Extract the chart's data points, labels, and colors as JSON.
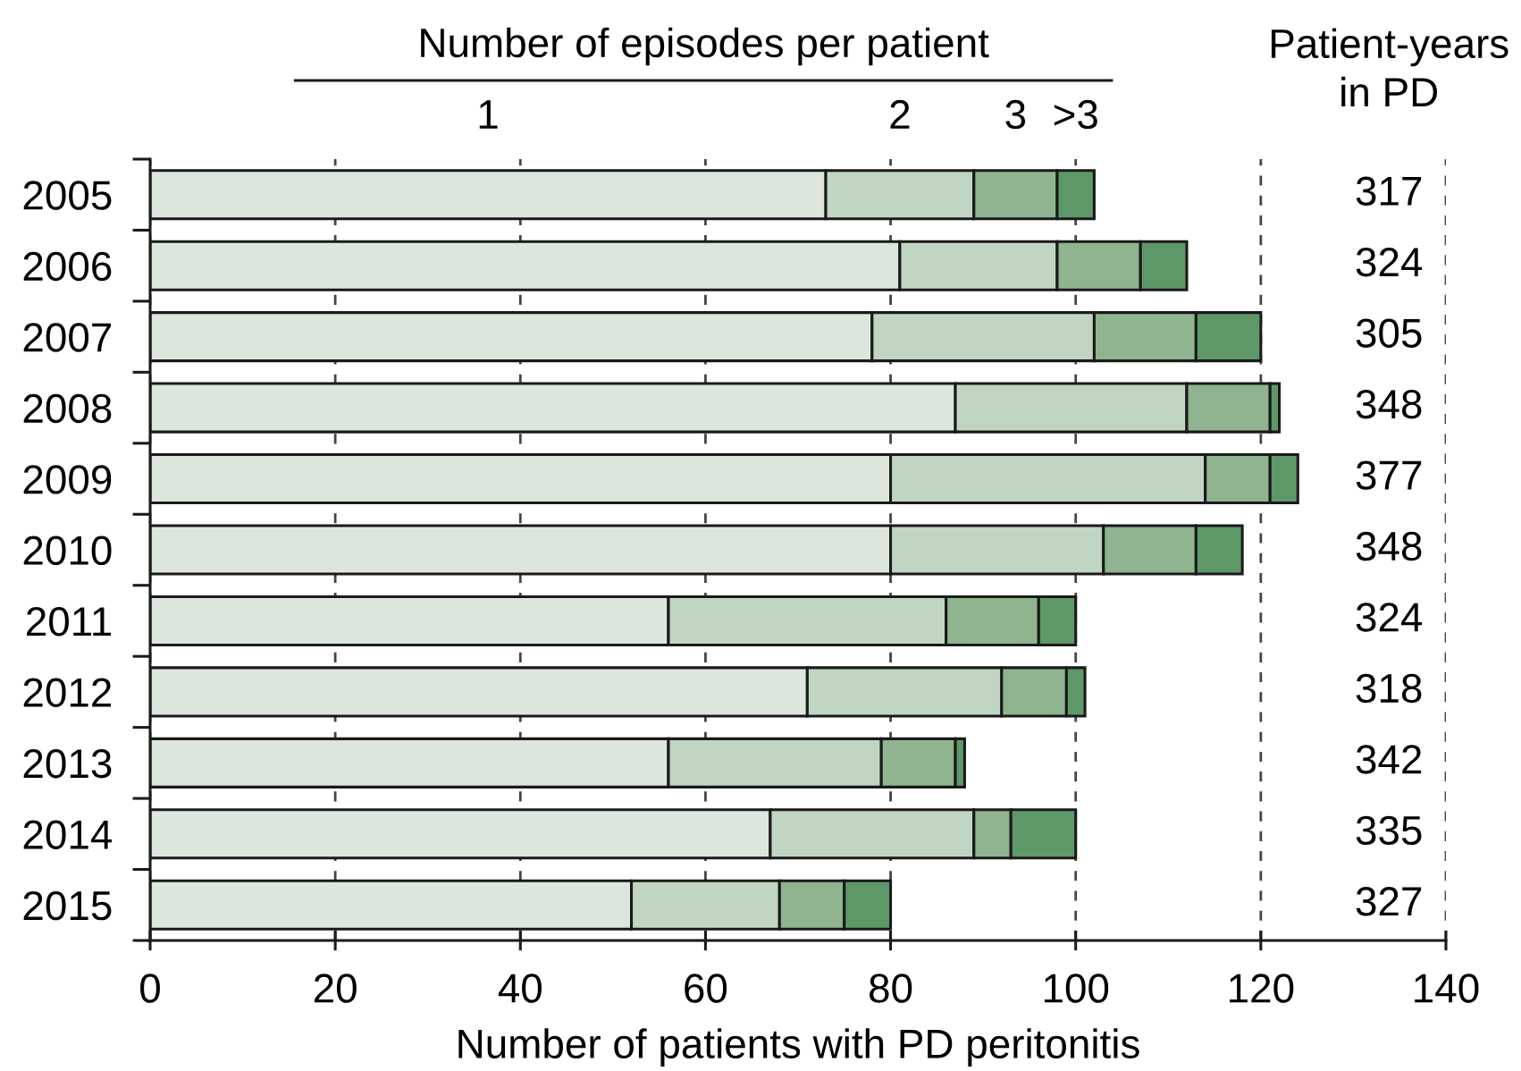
{
  "chart_data": {
    "type": "bar",
    "orientation": "horizontal",
    "stacked": true,
    "legend_title": "Number of episodes per patient",
    "xlabel": "Number of patients with PD peritonitis",
    "categories": [
      "2005",
      "2006",
      "2007",
      "2008",
      "2009",
      "2010",
      "2011",
      "2012",
      "2013",
      "2014",
      "2015"
    ],
    "series": [
      {
        "name": "1",
        "color": "#dde6dd",
        "values": [
          73,
          81,
          78,
          87,
          80,
          80,
          56,
          71,
          56,
          67,
          52
        ]
      },
      {
        "name": "2",
        "color": "#c1d6c2",
        "values": [
          16,
          17,
          24,
          25,
          34,
          23,
          30,
          21,
          23,
          22,
          16
        ]
      },
      {
        "name": "3",
        "color": "#8fb48f",
        "values": [
          9,
          9,
          11,
          9,
          7,
          10,
          10,
          7,
          8,
          4,
          7
        ]
      },
      {
        "name": ">3",
        "color": "#5f9868",
        "values": [
          4,
          5,
          7,
          1,
          3,
          5,
          4,
          2,
          1,
          7,
          5
        ]
      }
    ],
    "xlim": [
      0,
      140
    ],
    "xticks": [
      0,
      20,
      40,
      60,
      80,
      100,
      120,
      140
    ],
    "grid": "x",
    "annotations": [
      "Patient-years\nin PD",
      "317",
      "324",
      "305",
      "348",
      "377",
      "348",
      "324",
      "318",
      "342",
      "335",
      "327"
    ]
  }
}
